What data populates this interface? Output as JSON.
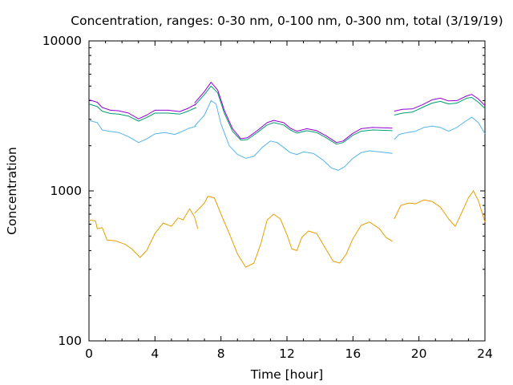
{
  "chart_data": {
    "type": "line",
    "title": "Concentration, ranges: 0-30 nm, 0-100 nm, 0-300 nm, total (3/19/19)",
    "xlabel": "Time [hour]",
    "ylabel": "Concentration",
    "xlim": [
      0,
      24
    ],
    "ylim": [
      100,
      10000
    ],
    "yscale": "log",
    "xticks": [
      0,
      4,
      8,
      12,
      16,
      20,
      24
    ],
    "yticks": [
      100,
      1000,
      10000
    ],
    "xtick_labels": [
      "0",
      "4",
      "8",
      "12",
      "16",
      "20",
      "24"
    ],
    "ytick_labels": [
      "100",
      "1000",
      "10000"
    ],
    "legend": "none",
    "grid": false,
    "series": [
      {
        "color": "#e69f00",
        "segments": [
          [
            [
              0.0,
              640
            ],
            [
              0.4,
              630
            ],
            [
              0.5,
              560
            ],
            [
              0.8,
              570
            ],
            [
              1.1,
              470
            ],
            [
              1.6,
              465
            ],
            [
              2.2,
              440
            ],
            [
              2.6,
              410
            ],
            [
              3.1,
              360
            ],
            [
              3.5,
              400
            ],
            [
              4.0,
              520
            ],
            [
              4.5,
              610
            ],
            [
              5.0,
              580
            ],
            [
              5.4,
              660
            ],
            [
              5.7,
              640
            ],
            [
              6.1,
              760
            ],
            [
              6.4,
              670
            ],
            [
              6.6,
              560
            ]
          ],
          [
            [
              6.4,
              710
            ],
            [
              7.0,
              830
            ],
            [
              7.2,
              920
            ],
            [
              7.6,
              900
            ],
            [
              8.0,
              700
            ],
            [
              8.5,
              520
            ],
            [
              9.0,
              380
            ],
            [
              9.5,
              310
            ],
            [
              10.0,
              330
            ],
            [
              10.4,
              440
            ],
            [
              10.8,
              640
            ],
            [
              11.2,
              700
            ],
            [
              11.6,
              650
            ],
            [
              12.0,
              510
            ],
            [
              12.3,
              410
            ],
            [
              12.6,
              400
            ],
            [
              12.9,
              490
            ],
            [
              13.3,
              540
            ],
            [
              13.8,
              520
            ],
            [
              14.3,
              420
            ],
            [
              14.8,
              340
            ],
            [
              15.2,
              330
            ],
            [
              15.6,
              380
            ],
            [
              16.0,
              480
            ],
            [
              16.5,
              590
            ],
            [
              17.0,
              620
            ],
            [
              17.6,
              560
            ],
            [
              18.0,
              490
            ],
            [
              18.4,
              460
            ]
          ],
          [
            [
              18.5,
              650
            ],
            [
              18.9,
              800
            ],
            [
              19.4,
              830
            ],
            [
              19.8,
              820
            ],
            [
              20.3,
              870
            ],
            [
              20.8,
              850
            ],
            [
              21.3,
              780
            ],
            [
              21.8,
              650
            ],
            [
              22.2,
              580
            ],
            [
              22.6,
              720
            ],
            [
              23.0,
              900
            ],
            [
              23.3,
              1000
            ],
            [
              23.6,
              860
            ],
            [
              24.0,
              620
            ]
          ]
        ]
      },
      {
        "color": "#56b4e9",
        "segments": [
          [
            [
              0.0,
              2950
            ],
            [
              0.5,
              2850
            ],
            [
              0.8,
              2550
            ],
            [
              1.2,
              2500
            ],
            [
              1.8,
              2450
            ],
            [
              2.4,
              2300
            ],
            [
              3.0,
              2100
            ],
            [
              3.5,
              2220
            ],
            [
              4.0,
              2400
            ],
            [
              4.6,
              2450
            ],
            [
              5.2,
              2380
            ],
            [
              5.6,
              2480
            ],
            [
              6.0,
              2600
            ],
            [
              6.5,
              2700
            ]
          ],
          [
            [
              6.4,
              2700
            ],
            [
              7.0,
              3200
            ],
            [
              7.4,
              4000
            ],
            [
              7.7,
              3800
            ],
            [
              8.0,
              2800
            ],
            [
              8.5,
              2000
            ],
            [
              9.0,
              1750
            ],
            [
              9.5,
              1650
            ],
            [
              10.0,
              1700
            ],
            [
              10.5,
              1950
            ],
            [
              11.0,
              2150
            ],
            [
              11.4,
              2100
            ],
            [
              11.8,
              1950
            ],
            [
              12.2,
              1800
            ],
            [
              12.6,
              1750
            ],
            [
              13.0,
              1820
            ],
            [
              13.6,
              1780
            ],
            [
              14.2,
              1600
            ],
            [
              14.7,
              1420
            ],
            [
              15.1,
              1370
            ],
            [
              15.5,
              1450
            ],
            [
              16.0,
              1650
            ],
            [
              16.5,
              1800
            ],
            [
              17.0,
              1850
            ],
            [
              17.6,
              1820
            ],
            [
              18.4,
              1780
            ]
          ],
          [
            [
              18.5,
              2200
            ],
            [
              18.8,
              2380
            ],
            [
              19.3,
              2450
            ],
            [
              19.8,
              2500
            ],
            [
              20.3,
              2650
            ],
            [
              20.8,
              2700
            ],
            [
              21.3,
              2650
            ],
            [
              21.8,
              2500
            ],
            [
              22.3,
              2650
            ],
            [
              22.8,
              2900
            ],
            [
              23.2,
              3100
            ],
            [
              23.6,
              2850
            ],
            [
              24.0,
              2400
            ]
          ]
        ]
      },
      {
        "color": "#009e73",
        "segments": [
          [
            [
              0.0,
              3800
            ],
            [
              0.5,
              3650
            ],
            [
              0.8,
              3400
            ],
            [
              1.3,
              3280
            ],
            [
              1.8,
              3250
            ],
            [
              2.4,
              3150
            ],
            [
              3.0,
              2920
            ],
            [
              3.5,
              3080
            ],
            [
              4.0,
              3300
            ],
            [
              4.8,
              3300
            ],
            [
              5.5,
              3250
            ],
            [
              6.0,
              3400
            ],
            [
              6.5,
              3600
            ]
          ],
          [
            [
              6.4,
              3700
            ],
            [
              7.0,
              4400
            ],
            [
              7.4,
              5000
            ],
            [
              7.8,
              4500
            ],
            [
              8.2,
              3300
            ],
            [
              8.7,
              2500
            ],
            [
              9.2,
              2180
            ],
            [
              9.6,
              2200
            ],
            [
              10.2,
              2450
            ],
            [
              10.8,
              2750
            ],
            [
              11.2,
              2850
            ],
            [
              11.8,
              2750
            ],
            [
              12.2,
              2550
            ],
            [
              12.6,
              2430
            ],
            [
              13.2,
              2520
            ],
            [
              13.8,
              2450
            ],
            [
              14.4,
              2250
            ],
            [
              15.0,
              2050
            ],
            [
              15.4,
              2100
            ],
            [
              16.0,
              2350
            ],
            [
              16.5,
              2500
            ],
            [
              17.2,
              2550
            ],
            [
              18.4,
              2520
            ]
          ],
          [
            [
              18.5,
              3200
            ],
            [
              19.0,
              3300
            ],
            [
              19.6,
              3350
            ],
            [
              20.2,
              3600
            ],
            [
              20.8,
              3850
            ],
            [
              21.3,
              3950
            ],
            [
              21.8,
              3800
            ],
            [
              22.3,
              3850
            ],
            [
              22.9,
              4150
            ],
            [
              23.2,
              4200
            ],
            [
              23.6,
              3900
            ],
            [
              24.0,
              3550
            ]
          ]
        ]
      },
      {
        "color": "#9400d3",
        "segments": [
          [
            [
              0.0,
              4050
            ],
            [
              0.5,
              3900
            ],
            [
              0.8,
              3600
            ],
            [
              1.3,
              3450
            ],
            [
              1.8,
              3420
            ],
            [
              2.4,
              3300
            ],
            [
              3.0,
              3020
            ],
            [
              3.5,
              3200
            ],
            [
              4.0,
              3450
            ],
            [
              4.8,
              3450
            ],
            [
              5.5,
              3380
            ],
            [
              6.0,
              3550
            ],
            [
              6.5,
              3800
            ]
          ],
          [
            [
              6.4,
              3850
            ],
            [
              7.0,
              4600
            ],
            [
              7.4,
              5300
            ],
            [
              7.8,
              4700
            ],
            [
              8.2,
              3450
            ],
            [
              8.7,
              2600
            ],
            [
              9.2,
              2230
            ],
            [
              9.6,
              2260
            ],
            [
              10.2,
              2520
            ],
            [
              10.8,
              2850
            ],
            [
              11.2,
              2950
            ],
            [
              11.8,
              2850
            ],
            [
              12.2,
              2620
            ],
            [
              12.6,
              2500
            ],
            [
              13.2,
              2600
            ],
            [
              13.8,
              2520
            ],
            [
              14.4,
              2320
            ],
            [
              15.0,
              2100
            ],
            [
              15.4,
              2150
            ],
            [
              16.0,
              2420
            ],
            [
              16.5,
              2600
            ],
            [
              17.2,
              2650
            ],
            [
              18.4,
              2620
            ]
          ],
          [
            [
              18.5,
              3400
            ],
            [
              19.0,
              3500
            ],
            [
              19.6,
              3520
            ],
            [
              20.2,
              3750
            ],
            [
              20.8,
              4050
            ],
            [
              21.3,
              4150
            ],
            [
              21.8,
              3980
            ],
            [
              22.3,
              4000
            ],
            [
              22.9,
              4300
            ],
            [
              23.2,
              4400
            ],
            [
              23.6,
              4100
            ],
            [
              24.0,
              3700
            ]
          ]
        ]
      }
    ]
  }
}
